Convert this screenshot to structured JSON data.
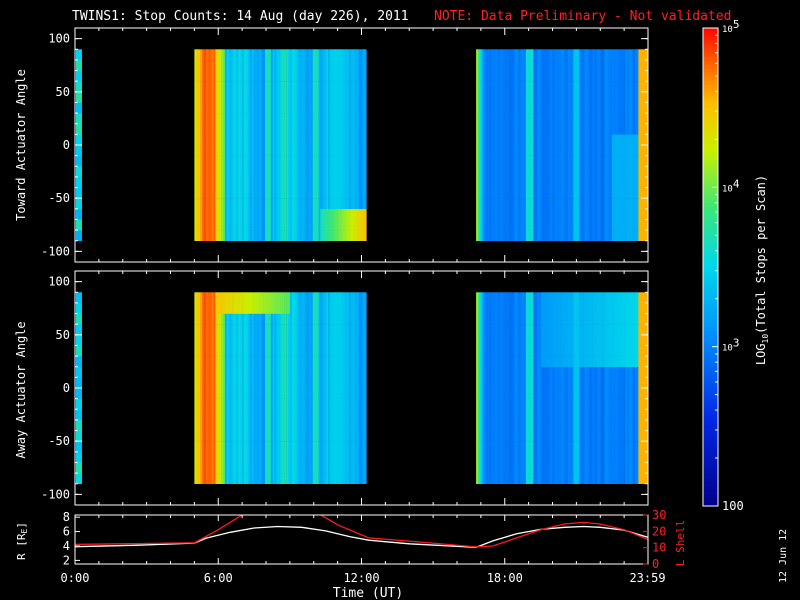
{
  "title": "TWINS1: Stop Counts: 14 Aug (day 226), 2011",
  "note": "NOTE: Data Preliminary - Not validated",
  "date_stamp": "12 Jun 12",
  "colors": {
    "background": "#000000",
    "axes": "#ffffff",
    "note": "#ff0000",
    "r_line": "#ffffff",
    "lshell_line": "#ff1a1a"
  },
  "chart_data": [
    {
      "type": "heatmap",
      "panel": "toward",
      "ylabel": "Toward Actuator Angle",
      "ylim": [
        -110,
        110
      ],
      "yticks": [
        "-100",
        "-50",
        "0",
        "50",
        "100"
      ],
      "xlim_hours": [
        0,
        24
      ],
      "data_blocks_hours": [
        [
          5.0,
          12.2
        ],
        [
          16.8,
          24.0
        ]
      ],
      "strip_hours": [
        0.0,
        0.25
      ],
      "angle_range": [
        -90,
        90
      ]
    },
    {
      "type": "heatmap",
      "panel": "away",
      "ylabel": "Away Actuator Angle",
      "ylim": [
        -110,
        110
      ],
      "yticks": [
        "-100",
        "-50",
        "0",
        "50",
        "100"
      ],
      "xlim_hours": [
        0,
        24
      ],
      "data_blocks_hours": [
        [
          5.0,
          12.2
        ],
        [
          16.8,
          24.0
        ]
      ],
      "strip_hours": [
        0.0,
        0.25
      ],
      "angle_range": [
        -90,
        90
      ]
    },
    {
      "type": "line",
      "panel": "orbit",
      "xlabel": "Time (UT)",
      "xticks": [
        "0:00",
        "6:00",
        "12:00",
        "18:00",
        "23:59"
      ],
      "xtick_hours": [
        0,
        6,
        12,
        18,
        23.98
      ],
      "ylabel_left": "R [R",
      "ylabel_left_sub": "E",
      "ylabel_left_close": "]",
      "ylim_left": [
        1.5,
        8.3
      ],
      "yticks_left": [
        "2",
        "4",
        "6",
        "8"
      ],
      "ylabel_right": "L Shell",
      "ylim_right": [
        0,
        30
      ],
      "yticks_right": [
        "0",
        "10",
        "20",
        "30"
      ],
      "series": [
        {
          "axis": "left",
          "x": [
            0,
            2.5,
            5.0,
            5.5,
            6.5,
            7.5,
            8.5,
            9.5,
            10.5,
            11.5,
            12.3,
            14.0,
            16.8,
            17.5,
            18.5,
            19.5,
            20.5,
            21.3,
            22.0,
            23.0,
            24.0
          ],
          "y": [
            3.9,
            4.1,
            4.4,
            5.1,
            5.9,
            6.5,
            6.7,
            6.6,
            6.1,
            5.3,
            4.8,
            4.3,
            3.8,
            4.7,
            5.7,
            6.3,
            6.6,
            6.7,
            6.6,
            6.2,
            5.2
          ]
        },
        {
          "axis": "right",
          "x": [
            0,
            2.5,
            5.0,
            6.0,
            7.0,
            7.5,
            9.8,
            10.3,
            11.0,
            12.3,
            14.0,
            16.8,
            17.5,
            18.5,
            19.5,
            20.5,
            21.3,
            22.0,
            23.0,
            24.0
          ],
          "y": [
            12.0,
            12.5,
            13.0,
            21.0,
            30.0,
            34.0,
            34.0,
            30.0,
            24.0,
            16.0,
            14.0,
            10.5,
            11.0,
            16.0,
            21.0,
            24.5,
            25.5,
            24.5,
            21.0,
            15.0
          ]
        }
      ]
    }
  ],
  "colorbar": {
    "label_main": "LOG",
    "label_sub": "10",
    "label_rest": "(Total Stops per Scan)",
    "range": [
      100,
      100000
    ],
    "ticks": [
      {
        "value": 100000,
        "base": "10",
        "exp": "5"
      },
      {
        "value": 10000,
        "base": "10",
        "exp": "4"
      },
      {
        "value": 1000,
        "base": "10",
        "exp": "3"
      },
      {
        "value": 100,
        "base": "100",
        "exp": ""
      }
    ]
  }
}
